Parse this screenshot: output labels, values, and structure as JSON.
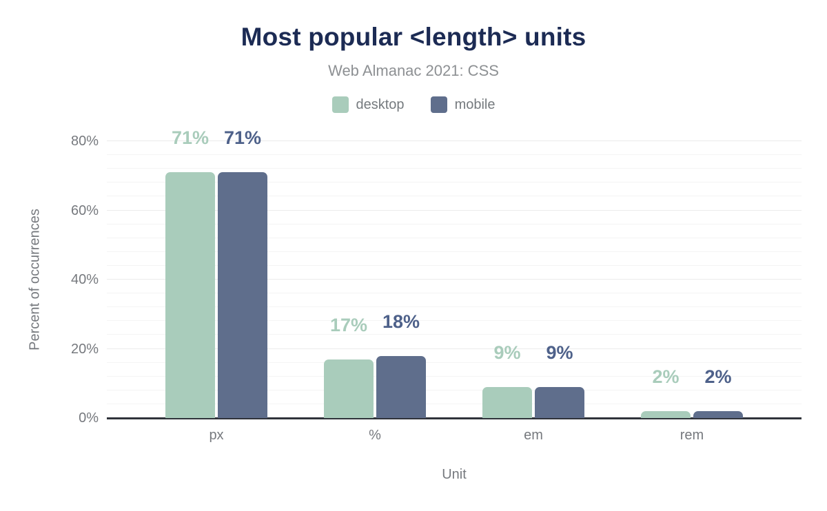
{
  "chart_data": {
    "type": "bar",
    "title": "Most popular <length> units",
    "subtitle": "Web Almanac 2021: CSS",
    "categories": [
      "px",
      "%",
      "em",
      "rem"
    ],
    "series": [
      {
        "name": "desktop",
        "color": "#a9ccbb",
        "label_color": "#a9ccbb",
        "values": [
          71,
          17,
          9,
          2
        ],
        "labels": [
          "71%",
          "17%",
          "9%",
          "2%"
        ]
      },
      {
        "name": "mobile",
        "color": "#5f6e8c",
        "label_color": "#4e618a",
        "values": [
          71,
          18,
          9,
          2
        ],
        "labels": [
          "71%",
          "18%",
          "9%",
          "2%"
        ]
      }
    ],
    "xlabel": "Unit",
    "ylabel": "Percent of occurrences",
    "ylim": [
      0,
      80
    ],
    "yticks": [
      {
        "value": 0,
        "label": "0%"
      },
      {
        "value": 20,
        "label": "20%"
      },
      {
        "value": 40,
        "label": "40%"
      },
      {
        "value": 60,
        "label": "60%"
      },
      {
        "value": 80,
        "label": "80%"
      }
    ],
    "grid": {
      "orientation": "horizontal",
      "minor_step": 4,
      "major_step": 20
    },
    "legend_position": "top",
    "colors": {
      "title": "#1c2b54",
      "subtitle": "#8d9093",
      "axis_text": "#76797e",
      "baseline": "#2f333a",
      "grid_minor": "#f4f4f4",
      "grid_major": "#ebebeb",
      "background": "#ffffff"
    }
  }
}
